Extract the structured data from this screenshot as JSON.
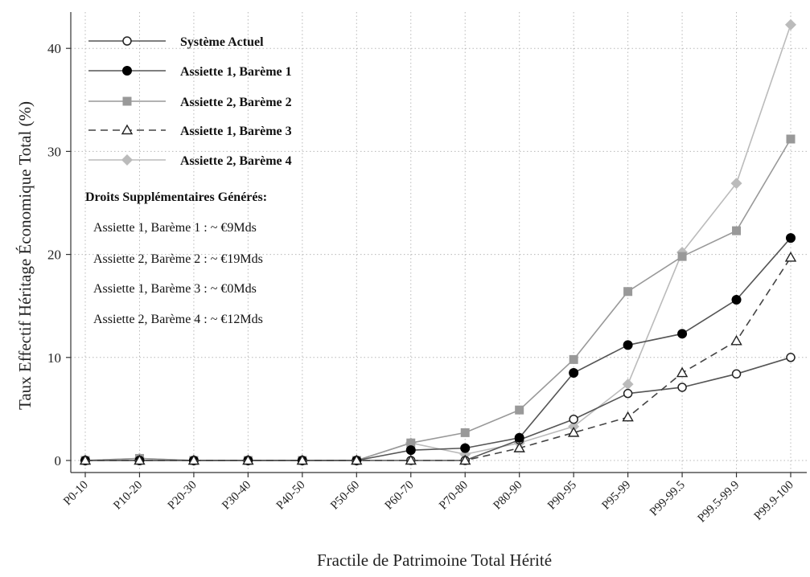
{
  "chart_data": {
    "type": "line",
    "xlabel": "Fractile de Patrimoine Total Hérité",
    "ylabel": "Taux Effectif Héritage Économique Total (%)",
    "ylim": [
      0,
      43
    ],
    "yticks": [
      0,
      10,
      20,
      30,
      40
    ],
    "grid": true,
    "legend_position": "top-left",
    "categories": [
      "P0-10",
      "P10-20",
      "P20-30",
      "P30-40",
      "P40-50",
      "P50-60",
      "P60-70",
      "P70-80",
      "P80-90",
      "P90-95",
      "P95-99",
      "P99-99.5",
      "P99.5-99.9",
      "P99.9-100"
    ],
    "series": [
      {
        "name": "Système Actuel",
        "color": "#555555",
        "marker": "circle-open",
        "dash": "solid",
        "values": [
          0,
          0,
          0,
          0,
          0,
          0,
          0,
          0,
          2.0,
          4.0,
          6.5,
          7.1,
          8.4,
          10.0
        ]
      },
      {
        "name": "Assiette 1, Barème 1",
        "color": "#555555",
        "marker": "circle-filled",
        "dash": "solid",
        "values": [
          0,
          0,
          0,
          0,
          0,
          0,
          1.0,
          1.2,
          2.2,
          8.5,
          11.2,
          12.3,
          15.6,
          21.6
        ]
      },
      {
        "name": "Assiette 2, Barème 2",
        "color": "#999999",
        "marker": "square",
        "dash": "solid",
        "values": [
          0,
          0.2,
          0,
          0,
          0,
          0,
          1.7,
          2.7,
          4.9,
          9.8,
          16.4,
          19.8,
          22.3,
          31.2
        ]
      },
      {
        "name": "Assiette 1, Barème 3",
        "color": "#444444",
        "marker": "triangle-open",
        "dash": "dashed",
        "values": [
          0,
          0,
          0,
          0,
          0,
          0,
          0,
          0,
          1.2,
          2.7,
          4.2,
          8.5,
          11.6,
          19.7
        ]
      },
      {
        "name": "Assiette 2, Barème 4",
        "color": "#bbbbbb",
        "marker": "diamond",
        "dash": "solid",
        "values": [
          0,
          0.2,
          0,
          0,
          0,
          0,
          1.7,
          0.6,
          1.7,
          3.3,
          7.4,
          20.2,
          26.9,
          42.3
        ]
      }
    ],
    "annotation": {
      "title": "Droits Supplémentaires Générés:",
      "items": [
        "Assiette 1, Barème 1 : ~ €9Mds",
        "Assiette 2, Barème 2 : ~ €19Mds",
        "Assiette 1, Barème 3 : ~ €0Mds",
        "Assiette 2, Barème 4 : ~ €12Mds"
      ]
    }
  }
}
